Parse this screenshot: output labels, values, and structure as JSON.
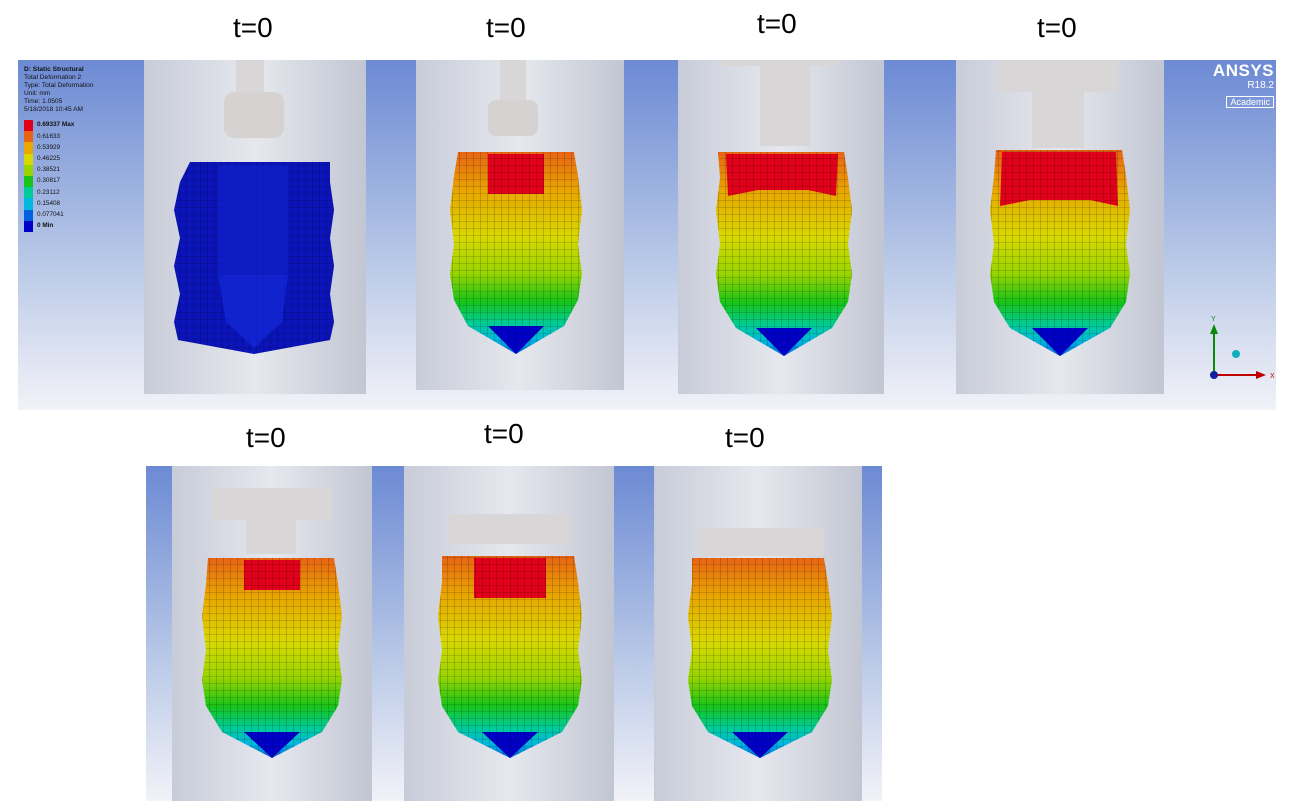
{
  "frame_labels": [
    "t=0",
    "t=0",
    "t=0",
    "t=0",
    "t=0",
    "t=0",
    "t=0"
  ],
  "legend": {
    "analysis": "D: Static Structural",
    "result_name": "Total Deformation 2",
    "result_type": "Type: Total Deformation",
    "unit": "Unit: mm",
    "time": "Time: 1.0505",
    "date": "5/18/2018 10:45 AM",
    "bands": [
      {
        "label": "0.69337 Max",
        "color": "#e0001a"
      },
      {
        "label": "0.61633",
        "color": "#e86414"
      },
      {
        "label": "0.53929",
        "color": "#e8a800"
      },
      {
        "label": "0.46225",
        "color": "#d8d800"
      },
      {
        "label": "0.38521",
        "color": "#98d400"
      },
      {
        "label": "0.30817",
        "color": "#18c418"
      },
      {
        "label": "0.23112",
        "color": "#00cc98"
      },
      {
        "label": "0.15408",
        "color": "#00b8e0"
      },
      {
        "label": "0.077041",
        "color": "#0060e0"
      },
      {
        "label": "0 Min",
        "color": "#0000c8"
      }
    ]
  },
  "brand": {
    "logo": "ANSYS",
    "version": "R18.2",
    "edition": "Academic"
  },
  "triad": {
    "x_label": "X",
    "y_label": "Y"
  },
  "colors": {
    "viewport_top": "#6c8ad4",
    "viewport_bottom": "#f2f2f8",
    "min": "#0000c8",
    "max": "#e0001a"
  }
}
